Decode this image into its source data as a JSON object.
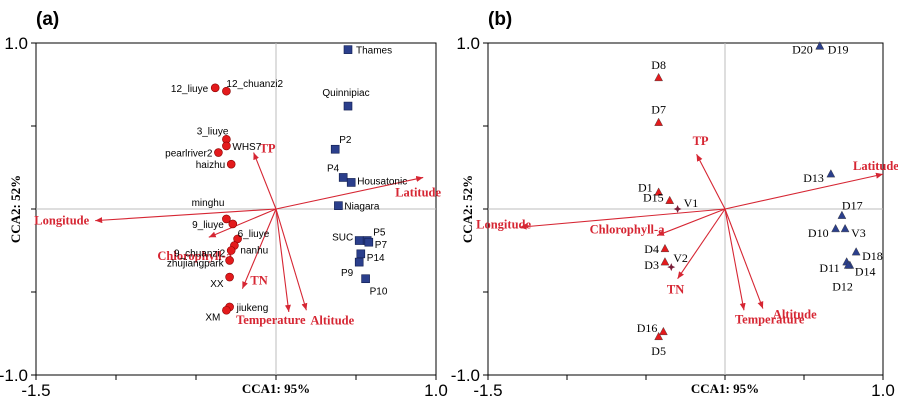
{
  "chart_data": [
    {
      "type": "scatter",
      "panel_label": "(a)",
      "xlabel": "CCA1: 95%",
      "ylabel": "CCA2: 52%",
      "xlim": [
        -1.5,
        1.0
      ],
      "ylim": [
        -1.0,
        1.0
      ],
      "x_ticks": [
        "-1.5",
        "1.0"
      ],
      "y_ticks": [
        "1.0",
        "-1.0"
      ],
      "series": [
        {
          "marker": "circle",
          "color": "#e31a1c",
          "points": [
            {
              "label": "12_liuye",
              "x": -0.38,
              "y": 0.73
            },
            {
              "label": "12_chuanzi2",
              "x": -0.31,
              "y": 0.71
            },
            {
              "label": "3_liuye",
              "x": -0.31,
              "y": 0.42
            },
            {
              "label": "WHS7",
              "x": -0.31,
              "y": 0.38
            },
            {
              "label": "pearlriver2",
              "x": -0.36,
              "y": 0.34
            },
            {
              "label": "haizhu",
              "x": -0.28,
              "y": 0.27
            },
            {
              "label": "minghu",
              "x": -0.31,
              "y": -0.06
            },
            {
              "label": "9_liuye",
              "x": -0.27,
              "y": -0.09
            },
            {
              "label": "6_liuye",
              "x": -0.24,
              "y": -0.18
            },
            {
              "label": "nanhu",
              "x": -0.26,
              "y": -0.22
            },
            {
              "label": "9_chuanzi2",
              "x": -0.28,
              "y": -0.25
            },
            {
              "label": "zhujiangpark",
              "x": -0.29,
              "y": -0.31
            },
            {
              "label": "XX",
              "x": -0.29,
              "y": -0.41
            },
            {
              "label": "jiukeng",
              "x": -0.29,
              "y": -0.59
            },
            {
              "label": "XM",
              "x": -0.31,
              "y": -0.61
            }
          ]
        },
        {
          "marker": "square",
          "color": "#2b3f8c",
          "points": [
            {
              "label": "Thames",
              "x": 0.45,
              "y": 0.96
            },
            {
              "label": "Quinnipiac",
              "x": 0.45,
              "y": 0.62
            },
            {
              "label": "P2",
              "x": 0.37,
              "y": 0.36
            },
            {
              "label": "P4",
              "x": 0.42,
              "y": 0.19
            },
            {
              "label": "Housatonic",
              "x": 0.47,
              "y": 0.16
            },
            {
              "label": "Niagara",
              "x": 0.39,
              "y": 0.02
            },
            {
              "label": "SUC",
              "x": 0.52,
              "y": -0.19
            },
            {
              "label": "P5",
              "x": 0.57,
              "y": -0.19
            },
            {
              "label": "P7",
              "x": 0.58,
              "y": -0.2
            },
            {
              "label": "P14",
              "x": 0.53,
              "y": -0.27
            },
            {
              "label": "P9",
              "x": 0.52,
              "y": -0.32
            },
            {
              "label": "P10",
              "x": 0.56,
              "y": -0.42
            }
          ]
        }
      ],
      "vectors": [
        {
          "label": "Longitude",
          "x": -1.13,
          "y": -0.07
        },
        {
          "label": "TP",
          "x": -0.14,
          "y": 0.34
        },
        {
          "label": "Latitude",
          "x": 0.92,
          "y": 0.19
        },
        {
          "label": "Chlorophyll-a",
          "x": -0.42,
          "y": -0.17
        },
        {
          "label": "TN",
          "x": -0.21,
          "y": -0.48
        },
        {
          "label": "Temperature",
          "x": 0.08,
          "y": -0.62
        },
        {
          "label": "Altitude",
          "x": 0.19,
          "y": -0.61
        }
      ]
    },
    {
      "type": "scatter",
      "panel_label": "(b)",
      "xlabel": "CCA1: 95%",
      "ylabel": "CCA2: 52%",
      "xlim": [
        -1.5,
        1.0
      ],
      "ylim": [
        -1.0,
        1.0
      ],
      "x_ticks": [
        "-1.5",
        "1.0"
      ],
      "y_ticks": [
        "1.0",
        "-1.0"
      ],
      "series": [
        {
          "marker": "triangle",
          "color": "#e31a1c",
          "points": [
            {
              "label": "D8",
              "x": -0.42,
              "y": 0.79
            },
            {
              "label": "D7",
              "x": -0.42,
              "y": 0.52
            },
            {
              "label": "D1",
              "x": -0.42,
              "y": 0.1
            },
            {
              "label": "D15",
              "x": -0.35,
              "y": 0.05
            },
            {
              "label": "D4",
              "x": -0.38,
              "y": -0.24
            },
            {
              "label": "D3",
              "x": -0.38,
              "y": -0.32
            },
            {
              "label": "D16",
              "x": -0.39,
              "y": -0.74
            },
            {
              "label": "D5",
              "x": -0.42,
              "y": -0.77
            }
          ]
        },
        {
          "marker": "triangle",
          "color": "#2b3f8c",
          "points": [
            {
              "label": "D20",
              "x": 0.6,
              "y": 0.98
            },
            {
              "label": "D19",
              "x": 0.6,
              "y": 0.98
            },
            {
              "label": "D13",
              "x": 0.67,
              "y": 0.21
            },
            {
              "label": "D17",
              "x": 0.74,
              "y": -0.04
            },
            {
              "label": "D10",
              "x": 0.7,
              "y": -0.12
            },
            {
              "label": "V3",
              "x": 0.76,
              "y": -0.12
            },
            {
              "label": "D18",
              "x": 0.83,
              "y": -0.26
            },
            {
              "label": "D11",
              "x": 0.77,
              "y": -0.32
            },
            {
              "label": "D14",
              "x": 0.79,
              "y": -0.34
            },
            {
              "label": "D12",
              "x": 0.78,
              "y": -0.34
            }
          ]
        },
        {
          "marker": "star",
          "color": "#7a1f3a",
          "points": [
            {
              "label": "V1",
              "x": -0.3,
              "y": 0.0
            },
            {
              "label": "V2",
              "x": -0.34,
              "y": -0.35
            }
          ]
        }
      ],
      "vectors": [
        {
          "label": "Longitude",
          "x": -1.3,
          "y": -0.11
        },
        {
          "label": "TP",
          "x": -0.18,
          "y": 0.33
        },
        {
          "label": "Latitude",
          "x": 1.0,
          "y": 0.21
        },
        {
          "label": "Chlorophyll-a",
          "x": -0.43,
          "y": -0.16
        },
        {
          "label": "TN",
          "x": -0.3,
          "y": -0.42
        },
        {
          "label": "Temperature",
          "x": 0.12,
          "y": -0.61
        },
        {
          "label": "Altitude",
          "x": 0.24,
          "y": -0.6
        }
      ]
    }
  ]
}
